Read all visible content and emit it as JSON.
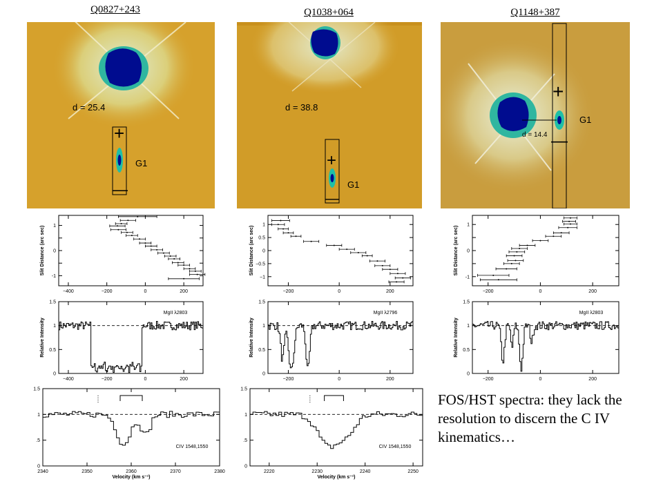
{
  "titles": [
    "Q0827+243",
    "Q1038+064",
    "Q1148+387"
  ],
  "caption": "FOS/HST spectra: they lack the resolution to discern the C IV kinematics…",
  "colors": {
    "background": "#d4a02a",
    "halo": "#c3d9a0",
    "core": "#000c8f",
    "accent": "#1fbfa7"
  },
  "images": [
    {
      "d_label": "d = 25.4",
      "g_label": "G1",
      "plus": "+",
      "minus": "—"
    },
    {
      "d_label": "d = 38.8",
      "g_label": "G1",
      "plus": "+",
      "minus": "—"
    },
    {
      "d_label": "d = 14.4",
      "g_label": "G1",
      "plus": "+",
      "minus": "—"
    }
  ],
  "chart_data": [
    {
      "type": "scatter",
      "panel": "Q0827+243 rotation",
      "ylabel": "Slit Distance (arc sec)",
      "xlim": [
        -450,
        300
      ],
      "ylim": [
        -1.4,
        1.4
      ],
      "xticks": [
        -400,
        -200,
        0,
        200
      ],
      "yticks": [
        1,
        0.5,
        0,
        -0.5,
        -1
      ],
      "ytick_labels": [
        "1",
        "",
        "0",
        "",
        "-1"
      ],
      "points": [
        [
          -40,
          1.35
        ],
        [
          -90,
          1.2
        ],
        [
          -125,
          1.07
        ],
        [
          -145,
          0.98
        ],
        [
          -140,
          0.83
        ],
        [
          -95,
          0.72
        ],
        [
          -70,
          0.6
        ],
        [
          -30,
          0.46
        ],
        [
          0,
          0.3
        ],
        [
          30,
          0.18
        ],
        [
          60,
          0.03
        ],
        [
          95,
          -0.1
        ],
        [
          130,
          -0.22
        ],
        [
          150,
          -0.33
        ],
        [
          170,
          -0.48
        ],
        [
          200,
          -0.58
        ],
        [
          230,
          -0.72
        ],
        [
          260,
          -0.82
        ],
        [
          270,
          -0.95
        ],
        [
          200,
          -1.12
        ]
      ],
      "xerr": [
        100,
        40,
        30,
        40,
        40,
        30,
        30,
        30,
        30,
        30,
        30,
        30,
        30,
        30,
        30,
        30,
        30,
        30,
        40,
        80
      ]
    },
    {
      "type": "scatter",
      "panel": "Q1038+064 rotation",
      "ylabel": "Slit Distance (arc sec)",
      "xlim": [
        -280,
        290
      ],
      "ylim": [
        -1.35,
        1.35
      ],
      "xticks": [
        -200,
        0,
        200
      ],
      "yticks": [
        1,
        0.5,
        0,
        -0.5,
        -1
      ],
      "ytick_labels": [
        "1",
        "0.5",
        "0",
        "−0.5",
        "−1"
      ],
      "points": [
        [
          -230,
          1.15
        ],
        [
          -240,
          1.0
        ],
        [
          -220,
          0.83
        ],
        [
          -200,
          0.68
        ],
        [
          -170,
          0.55
        ],
        [
          -110,
          0.35
        ],
        [
          -20,
          0.2
        ],
        [
          30,
          0.05
        ],
        [
          75,
          -0.08
        ],
        [
          110,
          -0.2
        ],
        [
          150,
          -0.4
        ],
        [
          170,
          -0.58
        ],
        [
          200,
          -0.72
        ],
        [
          230,
          -0.88
        ],
        [
          250,
          -1.05
        ],
        [
          225,
          -1.2
        ]
      ],
      "xerr": [
        35,
        25,
        20,
        20,
        20,
        30,
        30,
        30,
        30,
        20,
        30,
        30,
        30,
        30,
        30,
        30
      ]
    },
    {
      "type": "scatter",
      "panel": "Q1148+387 rotation",
      "ylabel": "Slit Distance (arc sec)",
      "xlim": [
        -260,
        300
      ],
      "ylim": [
        -1.35,
        1.35
      ],
      "xticks": [
        -200,
        0,
        200
      ],
      "yticks": [
        1,
        0.5,
        0,
        -0.5,
        -1
      ],
      "ytick_labels": [
        "1",
        "",
        "0",
        "",
        "-1"
      ],
      "points": [
        [
          115,
          1.25
        ],
        [
          110,
          1.12
        ],
        [
          115,
          1.02
        ],
        [
          105,
          0.88
        ],
        [
          80,
          0.68
        ],
        [
          50,
          0.55
        ],
        [
          0,
          0.38
        ],
        [
          -50,
          0.2
        ],
        [
          -80,
          0.08
        ],
        [
          -90,
          -0.05
        ],
        [
          -100,
          -0.2
        ],
        [
          -95,
          -0.38
        ],
        [
          -110,
          -0.5
        ],
        [
          -130,
          -0.7
        ],
        [
          -180,
          -0.95
        ],
        [
          -160,
          -1.12
        ]
      ],
      "xerr": [
        25,
        25,
        25,
        35,
        30,
        30,
        30,
        30,
        30,
        30,
        30,
        30,
        30,
        40,
        60,
        70
      ]
    },
    {
      "type": "line",
      "panel": "Q0827+243 MgII",
      "label": "MgII λ2803",
      "ylabel": "Relative Intensity",
      "xlim": [
        -450,
        300
      ],
      "ylim": [
        0,
        1.5
      ],
      "xticks": [
        -400,
        -200,
        0,
        200
      ],
      "yticks": [
        0,
        0.5,
        1,
        1.5
      ],
      "continuum": 1.0,
      "features": [
        {
          "lo": -285,
          "hi": -20,
          "depth": 0.05
        }
      ]
    },
    {
      "type": "line",
      "panel": "Q1038+064 MgII",
      "label": "MgII λ2796",
      "ylabel": "Relative Intensity",
      "xlim": [
        -280,
        290
      ],
      "ylim": [
        0,
        1.5
      ],
      "xticks": [
        -200,
        0,
        200
      ],
      "yticks": [
        0,
        0.5,
        1,
        1.5
      ],
      "continuum": 1.0,
      "features": [
        {
          "center": -225,
          "width": 10,
          "depth": 0.7
        },
        {
          "center": -190,
          "width": 14,
          "depth": 0.95
        },
        {
          "center": -125,
          "width": 10,
          "depth": 0.95
        }
      ]
    },
    {
      "type": "line",
      "panel": "Q1148+387 MgII",
      "label": "MgII λ2803",
      "ylabel": "Relative Intensity",
      "xlim": [
        -260,
        300
      ],
      "ylim": [
        0,
        1.5
      ],
      "xticks": [
        -200,
        0,
        200
      ],
      "yticks": [
        0,
        0.5,
        1,
        1.5
      ],
      "continuum": 1.0,
      "features": [
        {
          "center": -145,
          "width": 9,
          "depth": 0.75
        },
        {
          "center": -110,
          "width": 7,
          "depth": 0.45
        },
        {
          "center": -75,
          "width": 9,
          "depth": 0.9
        },
        {
          "center": -35,
          "width": 7,
          "depth": 0.35
        }
      ]
    },
    {
      "type": "line",
      "panel": "Q0827+243 CIV",
      "label": "CIV 1548,1550",
      "xlabel": "Velocity (km s⁻¹)",
      "xlim": [
        2340,
        2380
      ],
      "ylim": [
        0,
        1.5
      ],
      "xticks": [
        2340,
        2350,
        2360,
        2370,
        2380
      ],
      "yticks": [
        0,
        0.5,
        1,
        1.5
      ],
      "ytick_labels": [
        "0",
        ".5",
        "1",
        "1.5"
      ],
      "continuum": 1.0,
      "features": [
        {
          "center": 2358,
          "width": 2.2,
          "depth": 0.58
        },
        {
          "center": 2363,
          "width": 1.4,
          "depth": 0.4
        }
      ],
      "doublet": [
        2357.5,
        2362.5
      ],
      "dotted_marker": 2352.5
    },
    {
      "type": "line",
      "panel": "Q1038+064 CIV",
      "label": "CIV 1548,1550",
      "xlabel": "Velocity (km s⁻¹)",
      "xlim": [
        2216,
        2252
      ],
      "ylim": [
        0,
        1.5
      ],
      "xticks": [
        2220,
        2230,
        2240,
        2250
      ],
      "yticks": [
        0,
        0.5,
        1,
        1.5
      ],
      "ytick_labels": [
        "0",
        ".5",
        "1",
        "1.5"
      ],
      "continuum": 1.0,
      "features": [
        {
          "center": 2232,
          "width": 3,
          "depth": 0.6
        },
        {
          "center": 2236,
          "width": 2.5,
          "depth": 0.35
        }
      ],
      "doublet": [
        2231.5,
        2235.5
      ],
      "dotted_marker": 2228.5
    }
  ]
}
